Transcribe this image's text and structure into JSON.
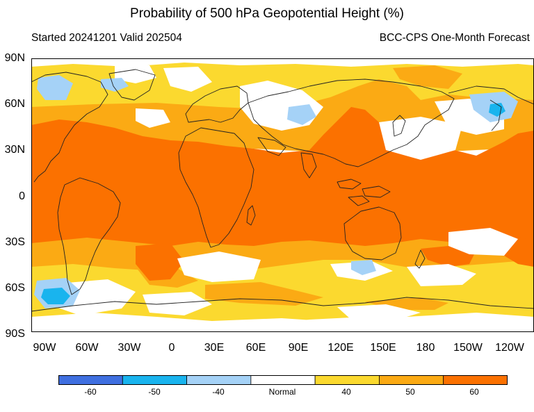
{
  "title": "Probability of 500 hPa Geopotential Height (%)",
  "subtitle_left": "Started 20241201  Valid 202504",
  "subtitle_right": "BCC-CPS One-Month Forecast",
  "lat_labels": [
    "90N",
    "60N",
    "30N",
    "0",
    "30S",
    "60S",
    "90S"
  ],
  "lon_labels": [
    "90W",
    "60W",
    "30W",
    "0",
    "30E",
    "60E",
    "90E",
    "120E",
    "150E",
    "180",
    "150W",
    "120W"
  ],
  "legend": {
    "colors": [
      "#3f6fe0",
      "#19b4ee",
      "#a5d2f7",
      "#ffffff",
      "#fbd92f",
      "#fbaa14",
      "#fb7100"
    ],
    "labels": [
      "-60",
      "-50",
      "-40",
      "Normal",
      "40",
      "50",
      "60"
    ]
  },
  "colors": {
    "above60": "#fb7100",
    "above50": "#fbaa14",
    "above40": "#fbd92f",
    "normal": "#ffffff",
    "below40": "#a5d2f7",
    "below50": "#19b4ee",
    "coast": "#222222"
  }
}
